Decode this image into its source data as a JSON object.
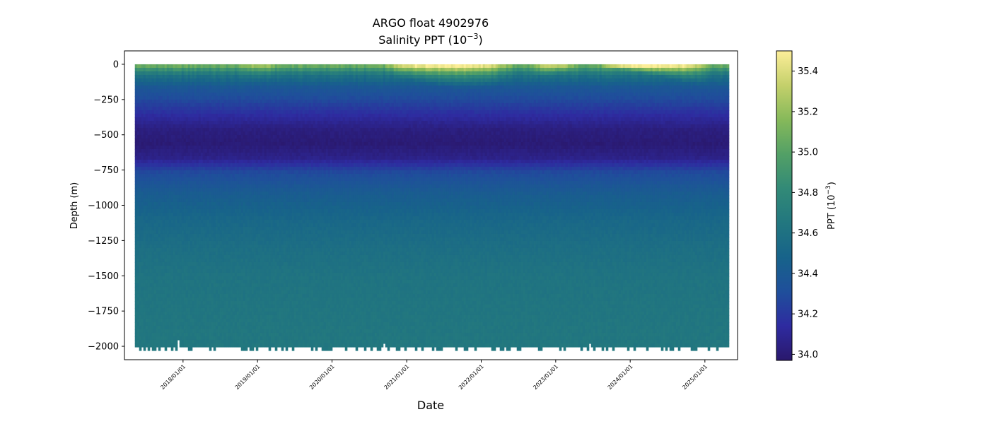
{
  "chart_data": {
    "type": "heatmap",
    "title": "ARGO float 4902976",
    "subtitle": {
      "main": "Salinity PPT (10",
      "sup": "−3",
      "tail": ")"
    },
    "xlabel": "Date",
    "ylabel": "Depth (m)",
    "x_ticks": [
      "2018/01/01",
      "2019/01/01",
      "2020/01/01",
      "2021/01/01",
      "2022/01/01",
      "2023/01/01",
      "2024/01/01",
      "2025/01/01"
    ],
    "x_range": [
      "2017-03-20",
      "2025-06-10"
    ],
    "data_x_range": [
      "2017-05-10",
      "2025-04-20"
    ],
    "y_ticks": [
      0,
      -250,
      -500,
      -750,
      -1000,
      -1250,
      -1500,
      -1750,
      -2000
    ],
    "ylim": [
      -2095,
      95
    ],
    "depth_range": [
      0,
      -2000
    ],
    "colorbar": {
      "label": {
        "main": "PPT (10",
        "sup": "−3",
        "tail": ")"
      },
      "ticks": [
        35.4,
        35.2,
        35.0,
        34.8,
        34.6,
        34.4,
        34.2,
        34.0
      ],
      "range": [
        33.97,
        35.5
      ],
      "colormap": "haline",
      "stops": [
        "#2a186c",
        "#2e2ba0",
        "#1f4f9b",
        "#17638a",
        "#22777f",
        "#328a77",
        "#53a066",
        "#86b95a",
        "#c4d06b",
        "#fdee99"
      ]
    },
    "profile": {
      "depths": [
        0,
        -60,
        -150,
        -250,
        -350,
        -450,
        -550,
        -650,
        -750,
        -900,
        -1100,
        -1300,
        -1500,
        -1800,
        -2000
      ],
      "salinity": [
        35.05,
        34.62,
        34.38,
        34.27,
        34.14,
        34.03,
        34.0,
        34.06,
        34.28,
        34.42,
        34.52,
        34.58,
        34.62,
        34.64,
        34.65
      ]
    },
    "surface_high_salinity_periods": [
      {
        "start": "2018-10-01",
        "end": "2019-04-01",
        "peak": 35.2
      },
      {
        "start": "2020-09-01",
        "end": "2022-06-01",
        "peak": 35.5
      },
      {
        "start": "2022-09-01",
        "end": "2023-04-01",
        "peak": 35.3
      },
      {
        "start": "2023-08-01",
        "end": "2025-02-01",
        "peak": 35.5
      }
    ]
  }
}
